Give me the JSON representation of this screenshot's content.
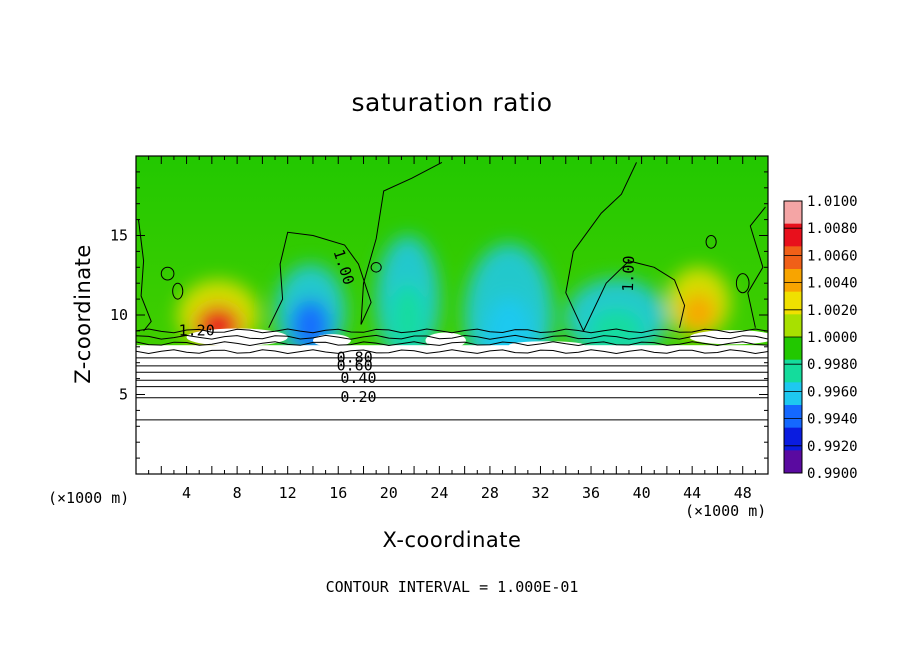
{
  "chart_data": {
    "type": "heatmap",
    "title": "saturation ratio",
    "xlabel": "X-coordinate",
    "ylabel": "Z-coordinate",
    "x_unit_note": "(×1000 m)",
    "footer": "CONTOUR INTERVAL = 1.000E-01",
    "xlim": [
      0,
      50
    ],
    "ylim": [
      0,
      20
    ],
    "x_ticks": [
      4,
      8,
      12,
      16,
      20,
      24,
      28,
      32,
      36,
      40,
      44,
      48
    ],
    "y_ticks": [
      5,
      10,
      15
    ],
    "colorbar": {
      "min": 0.99,
      "max": 1.01,
      "labels": [
        "1.0100",
        "1.0080",
        "1.0060",
        "1.0040",
        "1.0020",
        "1.0000",
        "0.9980",
        "0.9960",
        "0.9940",
        "0.9920",
        "0.9900"
      ],
      "colors": [
        "#f4a5a5",
        "#e8101c",
        "#f06018",
        "#f8a400",
        "#f0e000",
        "#a8e000",
        "#22c800",
        "#14dc9c",
        "#1ec8f0",
        "#1468ff",
        "#0a1ce0",
        "#5a0aa0"
      ]
    },
    "contour_interval": 0.1,
    "contour_labels": [
      {
        "text": "1.20",
        "x": 4.8,
        "z": 9.0
      },
      {
        "text": "1.00",
        "x": 16.4,
        "z": 13.0
      },
      {
        "text": "1.00",
        "x": 39.0,
        "z": 12.6
      },
      {
        "text": "0.80",
        "x": 17.3,
        "z": 7.3
      },
      {
        "text": "0.60",
        "x": 17.3,
        "z": 6.8
      },
      {
        "text": "0.40",
        "x": 17.6,
        "z": 6.0
      },
      {
        "text": "0.20",
        "x": 17.6,
        "z": 4.8
      }
    ],
    "horizontal_contour_levels_z": [
      9.0,
      8.6,
      8.2,
      7.7,
      7.3,
      6.8,
      6.4,
      5.9,
      5.5,
      4.8,
      3.4
    ],
    "field_features": [
      {
        "kind": "supersaturated",
        "x": 6.5,
        "z": 10.0,
        "rx": 3.2,
        "rz": 2.2,
        "value": 1.008
      },
      {
        "kind": "supersaturated",
        "x": 44.5,
        "z": 10.8,
        "rx": 2.5,
        "rz": 2.2,
        "value": 1.004
      },
      {
        "kind": "subsaturated",
        "x": 13.8,
        "z": 10.2,
        "rx": 2.8,
        "rz": 3.0,
        "value": 0.994
      },
      {
        "kind": "subsaturated",
        "x": 29.5,
        "z": 10.0,
        "rx": 3.5,
        "rz": 4.5,
        "value": 0.996
      },
      {
        "kind": "subsaturated",
        "x": 38.0,
        "z": 9.8,
        "rx": 4.0,
        "rz": 2.5,
        "value": 0.998
      },
      {
        "kind": "subsaturated",
        "x": 21.5,
        "z": 11.0,
        "rx": 2.5,
        "rz": 4.0,
        "value": 0.998
      }
    ]
  }
}
